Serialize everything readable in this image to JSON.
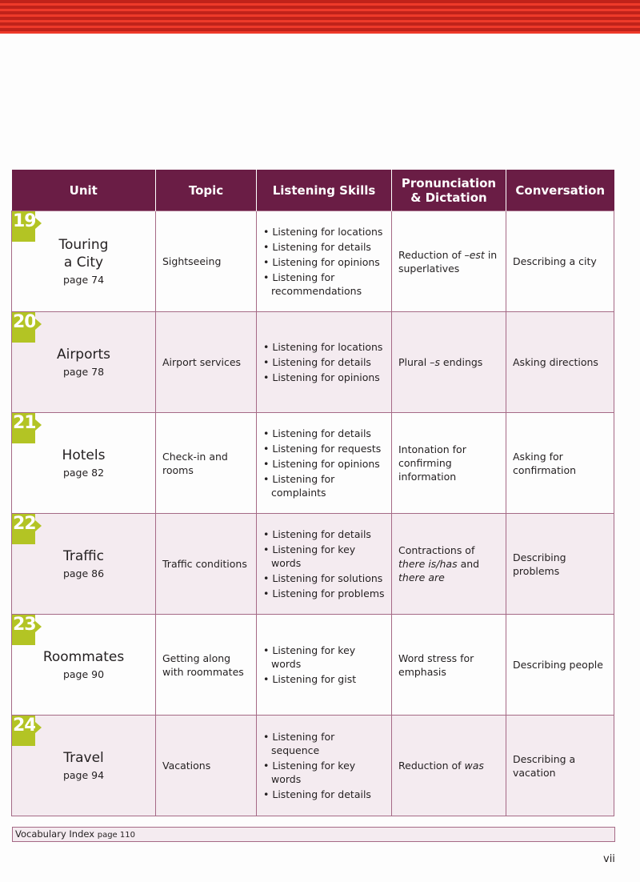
{
  "header": {
    "columns": [
      "Unit",
      "Topic",
      "Listening Skills",
      "Pronunciation & Dictation",
      "Conversation"
    ]
  },
  "colors": {
    "header_bg": "#6a1d45",
    "badge": "#b3c424",
    "row_alt": "#f4ebf0",
    "stripes": "#c0221a"
  },
  "rows": [
    {
      "number": "19",
      "title": "Touring a City",
      "page": "page 74",
      "topic": "Sightseeing",
      "skills": [
        "Listening for locations",
        "Listening for details",
        "Listening for opinions",
        "Listening for recommendations"
      ],
      "pronunciation": [
        {
          "text": "Reduction of –"
        },
        {
          "text": "est",
          "italic": true
        },
        {
          "text": " in superlatives"
        }
      ],
      "conversation": "Describing a city"
    },
    {
      "number": "20",
      "title": "Airports",
      "page": "page 78",
      "topic": "Airport services",
      "skills": [
        "Listening for locations",
        "Listening for details",
        "Listening for opinions"
      ],
      "pronunciation": [
        {
          "text": "Plural –"
        },
        {
          "text": "s",
          "italic": true
        },
        {
          "text": " endings"
        }
      ],
      "conversation": "Asking directions"
    },
    {
      "number": "21",
      "title": "Hotels",
      "page": "page 82",
      "topic": "Check-in and rooms",
      "skills": [
        "Listening for details",
        "Listening for requests",
        "Listening for opinions",
        "Listening for complaints"
      ],
      "pronunciation": [
        {
          "text": "Intonation for confirming information"
        }
      ],
      "conversation": "Asking for confirmation"
    },
    {
      "number": "22",
      "title": "Traffic",
      "page": "page 86",
      "topic": "Traffic conditions",
      "skills": [
        "Listening for details",
        "Listening for key words",
        "Listening for solutions",
        "Listening for problems"
      ],
      "pronunciation": [
        {
          "text": "Contractions of "
        },
        {
          "text": "there is/has",
          "italic": true
        },
        {
          "text": " and "
        },
        {
          "text": "there are",
          "italic": true
        }
      ],
      "conversation": "Describing problems"
    },
    {
      "number": "23",
      "title": "Roommates",
      "page": "page 90",
      "topic": "Getting along with roommates",
      "skills": [
        "Listening for key words",
        "Listening for gist"
      ],
      "pronunciation": [
        {
          "text": "Word stress for emphasis"
        }
      ],
      "conversation": "Describing people"
    },
    {
      "number": "24",
      "title": "Travel",
      "page": "page 94",
      "topic": "Vacations",
      "skills": [
        "Listening for sequence",
        "Listening for key words",
        "Listening for details"
      ],
      "pronunciation": [
        {
          "text": "Reduction of "
        },
        {
          "text": "was",
          "italic": true
        }
      ],
      "conversation": "Describing a vacation"
    }
  ],
  "footer": {
    "label": "Vocabulary Index",
    "page": "page 110"
  },
  "page_number": "vii"
}
